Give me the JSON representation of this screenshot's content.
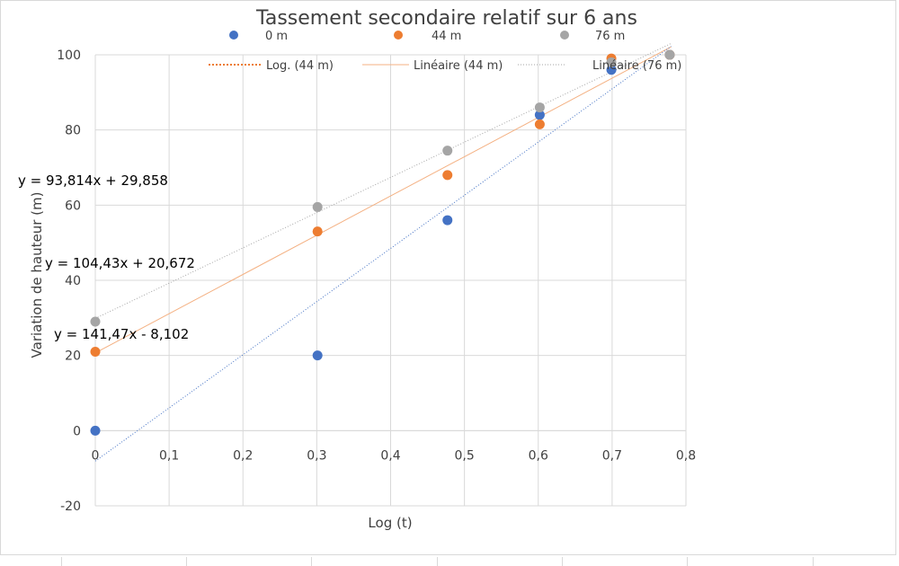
{
  "chart_data": {
    "type": "scatter",
    "title": "Tassement secondaire relatif sur 6 ans",
    "xlabel": "Log (t)",
    "ylabel": "Variation de hauteur (m)",
    "xlim": [
      0,
      0.8
    ],
    "ylim": [
      -20,
      100
    ],
    "xticks": [
      "0",
      "0,1",
      "0,2",
      "0,3",
      "0,4",
      "0,5",
      "0,6",
      "0,7",
      "0,8"
    ],
    "xtick_values": [
      0,
      0.1,
      0.2,
      0.3,
      0.4,
      0.5,
      0.6,
      0.7,
      0.8
    ],
    "yticks": [
      "-20",
      "0",
      "20",
      "40",
      "60",
      "80",
      "100"
    ],
    "ytick_values": [
      -20,
      0,
      20,
      40,
      60,
      80,
      100
    ],
    "grid": true,
    "legend_placement": "top",
    "x": [
      0,
      0.301,
      0.477,
      0.602,
      0.699,
      0.778
    ],
    "series": [
      {
        "name": "0 m",
        "color": "#4472c4",
        "values": [
          0,
          20,
          56,
          84,
          96,
          100
        ]
      },
      {
        "name": "44 m",
        "color": "#ed7d31",
        "values": [
          21,
          53,
          68,
          81.5,
          99,
          100
        ]
      },
      {
        "name": "76 m",
        "color": "#a5a5a5",
        "values": [
          29,
          59.5,
          74.5,
          86,
          98,
          100
        ]
      }
    ],
    "trendlines": [
      {
        "name": "Log. (44 m)",
        "type": "log",
        "color": "#ed7d31",
        "style": "dotted",
        "legend_only": true
      },
      {
        "name": "Linéaire (44 m)",
        "type": "linear",
        "color": "#f4b183",
        "style": "solid",
        "slope": 104.43,
        "intercept": 20.672
      },
      {
        "name": "Linéaire (76 m)",
        "type": "linear",
        "color": "#a5a5a5",
        "style": "dotted",
        "slope": 93.814,
        "intercept": 29.858
      },
      {
        "type": "linear",
        "color": "#4472c4",
        "style": "dotted",
        "slope": 141.47,
        "intercept": -8.102
      }
    ],
    "equations": [
      "y = 93,814x + 29,858",
      "y = 104,43x + 20,672",
      "y = 141,47x - 8,102"
    ]
  }
}
